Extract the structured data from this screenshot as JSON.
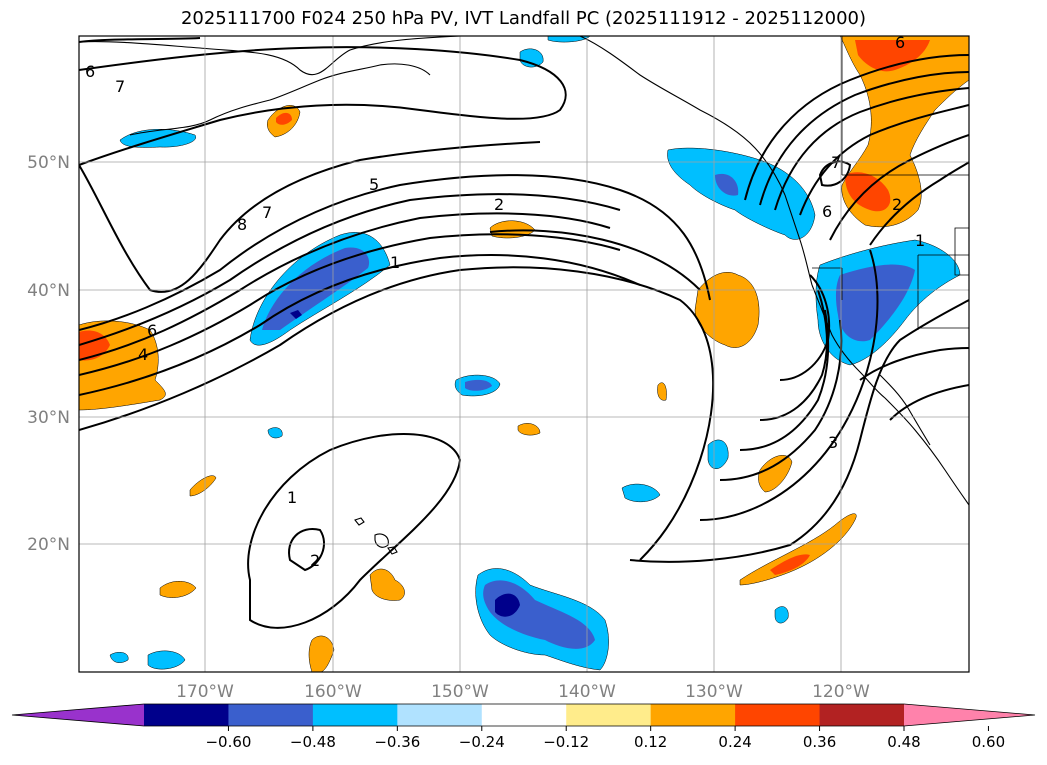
{
  "title": "2025111700 F024 250 hPa PV, IVT Landfall PC (2025111912 - 2025112000)",
  "lat_labels": [
    "50°N",
    "40°N",
    "30°N",
    "20°N"
  ],
  "lon_labels": [
    "170°W",
    "160°W",
    "150°W",
    "140°W",
    "130°W",
    "120°W"
  ],
  "contour_labels": [
    "6",
    "7",
    "8",
    "7",
    "5",
    "2",
    "1",
    "6",
    "4",
    "1",
    "2",
    "3",
    "7",
    "6",
    "2",
    "1",
    "6"
  ],
  "colorbar": {
    "ticks": [
      "−0.60",
      "−0.48",
      "−0.36",
      "−0.24",
      "−0.12",
      "0.12",
      "0.24",
      "0.36",
      "0.48",
      "0.60"
    ],
    "colors": [
      "#9932cc",
      "#00008b",
      "#3a5fcd",
      "#00bfff",
      "#b0e2ff",
      "#ffffff",
      "#ffec8b",
      "#ffa500",
      "#ff4500",
      "#b22222",
      "#ff82ab"
    ]
  }
}
